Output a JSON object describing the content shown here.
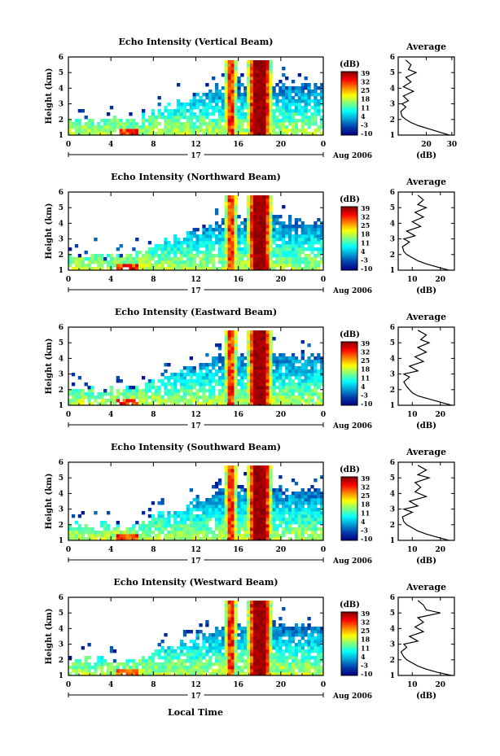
{
  "figure": {
    "xlabel_bottom": "Local Time",
    "date_label": "Aug 2006",
    "day_label": "17",
    "colorbar_unit": "(dB)",
    "avg_title": "Average",
    "avg_xlabel": "(dB)"
  },
  "chart_data": [
    {
      "type": "heatmap",
      "title": "Echo Intensity (Vertical Beam)",
      "ylabel": "Height (km)",
      "x_ticks": [
        "0",
        "4",
        "8",
        "12",
        "16",
        "20",
        "0"
      ],
      "x_range_hours": [
        0,
        24
      ],
      "y_ticks": [
        "1",
        "2",
        "3",
        "4",
        "5",
        "6"
      ],
      "y_range_km": [
        1,
        6
      ],
      "colorbar": {
        "label": "(dB)",
        "ticks": [
          "39",
          "32",
          "25",
          "18",
          "11",
          "4",
          "-3",
          "-10"
        ],
        "range": [
          -10,
          39
        ]
      },
      "heavy_rain_periods_hours": [
        [
          15.0,
          15.6
        ],
        [
          17.0,
          19.0
        ]
      ],
      "average_profile": {
        "title": "Average",
        "xlabel": "(dB)",
        "x_ticks": [
          "20",
          "30"
        ],
        "xlim": [
          9,
          31
        ],
        "y_ticks": [
          "1",
          "2",
          "3",
          "4",
          "5",
          "6"
        ],
        "ylim": [
          1,
          6
        ],
        "height_km": [
          1.0,
          1.2,
          1.4,
          1.6,
          1.8,
          2.0,
          2.2,
          2.5,
          2.8,
          3.0,
          3.2,
          3.5,
          3.8,
          4.1,
          4.4,
          4.7,
          5.0,
          5.2,
          5.5,
          5.8
        ],
        "value_db": [
          29,
          25,
          21,
          17,
          14,
          12,
          10.5,
          10,
          12,
          10.5,
          13,
          11,
          15,
          11,
          14,
          12,
          16,
          13,
          14,
          12
        ]
      }
    },
    {
      "type": "heatmap",
      "title": "Echo Intensity (Northward Beam)",
      "ylabel": "Height (km)",
      "x_ticks": [
        "0",
        "4",
        "8",
        "12",
        "16",
        "20",
        "0"
      ],
      "x_range_hours": [
        0,
        24
      ],
      "y_ticks": [
        "1",
        "2",
        "3",
        "4",
        "5",
        "6"
      ],
      "y_range_km": [
        1,
        6
      ],
      "colorbar": {
        "label": "(dB)",
        "ticks": [
          "39",
          "32",
          "25",
          "18",
          "11",
          "4",
          "-3",
          "-10"
        ],
        "range": [
          -10,
          39
        ]
      },
      "heavy_rain_periods_hours": [
        [
          15.0,
          15.6
        ],
        [
          17.0,
          19.0
        ]
      ],
      "average_profile": {
        "title": "Average",
        "xlabel": "(dB)",
        "x_ticks": [
          "10",
          "20"
        ],
        "xlim": [
          5,
          25
        ],
        "y_ticks": [
          "1",
          "2",
          "3",
          "4",
          "5",
          "6"
        ],
        "ylim": [
          1,
          6
        ],
        "height_km": [
          1.0,
          1.2,
          1.4,
          1.6,
          1.8,
          2.0,
          2.2,
          2.5,
          2.8,
          3.0,
          3.2,
          3.5,
          3.8,
          4.1,
          4.4,
          4.7,
          5.0,
          5.2,
          5.5,
          5.8
        ],
        "value_db": [
          23,
          19,
          15,
          12,
          10,
          8,
          7,
          6.5,
          9,
          7,
          11,
          8,
          13,
          10,
          14,
          11,
          15,
          12,
          14,
          12
        ]
      }
    },
    {
      "type": "heatmap",
      "title": "Echo Intensity (Eastward Beam)",
      "ylabel": "Height (km)",
      "x_ticks": [
        "0",
        "4",
        "8",
        "12",
        "16",
        "20",
        "0"
      ],
      "x_range_hours": [
        0,
        24
      ],
      "y_ticks": [
        "1",
        "2",
        "3",
        "4",
        "5",
        "6"
      ],
      "y_range_km": [
        1,
        6
      ],
      "colorbar": {
        "label": "(dB)",
        "ticks": [
          "39",
          "32",
          "25",
          "18",
          "11",
          "4",
          "-3",
          "-10"
        ],
        "range": [
          -10,
          39
        ]
      },
      "heavy_rain_periods_hours": [
        [
          15.0,
          15.6
        ],
        [
          17.0,
          19.0
        ]
      ],
      "average_profile": {
        "title": "Average",
        "xlabel": "(dB)",
        "x_ticks": [
          "10",
          "20"
        ],
        "xlim": [
          5,
          25
        ],
        "y_ticks": [
          "1",
          "2",
          "3",
          "4",
          "5",
          "6"
        ],
        "ylim": [
          1,
          6
        ],
        "height_km": [
          1.0,
          1.2,
          1.4,
          1.6,
          1.8,
          2.0,
          2.2,
          2.5,
          2.8,
          3.0,
          3.2,
          3.5,
          3.8,
          4.1,
          4.4,
          4.7,
          5.0,
          5.2,
          5.5,
          5.8
        ],
        "value_db": [
          24,
          20,
          16,
          12,
          10,
          9,
          8,
          7,
          9,
          7,
          12,
          9,
          14,
          11,
          15,
          12,
          16,
          13,
          15,
          12
        ]
      }
    },
    {
      "type": "heatmap",
      "title": "Echo Intensity (Southward Beam)",
      "ylabel": "Height (km)",
      "x_ticks": [
        "0",
        "4",
        "8",
        "12",
        "16",
        "20",
        "0"
      ],
      "x_range_hours": [
        0,
        24
      ],
      "y_ticks": [
        "1",
        "2",
        "3",
        "4",
        "5",
        "6"
      ],
      "y_range_km": [
        1,
        6
      ],
      "colorbar": {
        "label": "(dB)",
        "ticks": [
          "39",
          "32",
          "25",
          "18",
          "11",
          "4",
          "-3",
          "-10"
        ],
        "range": [
          -10,
          39
        ]
      },
      "heavy_rain_periods_hours": [
        [
          15.0,
          15.6
        ],
        [
          17.0,
          19.0
        ]
      ],
      "average_profile": {
        "title": "Average",
        "xlabel": "(dB)",
        "x_ticks": [
          "10",
          "20"
        ],
        "xlim": [
          5,
          25
        ],
        "y_ticks": [
          "1",
          "2",
          "3",
          "4",
          "5",
          "6"
        ],
        "ylim": [
          1,
          6
        ],
        "height_km": [
          1.0,
          1.2,
          1.4,
          1.6,
          1.8,
          2.0,
          2.2,
          2.5,
          2.8,
          3.0,
          3.2,
          3.5,
          3.8,
          4.1,
          4.4,
          4.7,
          5.0,
          5.2,
          5.5,
          5.8
        ],
        "value_db": [
          23,
          19,
          15,
          12,
          10,
          8,
          7,
          6.5,
          10,
          7,
          12,
          9,
          15,
          11,
          13,
          11,
          16,
          12,
          15,
          12
        ]
      }
    },
    {
      "type": "heatmap",
      "title": "Echo Intensity (Westward Beam)",
      "ylabel": "Height (km)",
      "x_ticks": [
        "0",
        "4",
        "8",
        "12",
        "16",
        "20",
        "0"
      ],
      "x_range_hours": [
        0,
        24
      ],
      "y_ticks": [
        "1",
        "2",
        "3",
        "4",
        "5",
        "6"
      ],
      "y_range_km": [
        1,
        6
      ],
      "colorbar": {
        "label": "(dB)",
        "ticks": [
          "39",
          "32",
          "25",
          "18",
          "11",
          "4",
          "-3",
          "-10"
        ],
        "range": [
          -10,
          39
        ]
      },
      "heavy_rain_periods_hours": [
        [
          15.0,
          15.6
        ],
        [
          17.0,
          19.0
        ]
      ],
      "average_profile": {
        "title": "Average",
        "xlabel": "(dB)",
        "x_ticks": [
          "10",
          "20"
        ],
        "xlim": [
          5,
          25
        ],
        "y_ticks": [
          "1",
          "2",
          "3",
          "4",
          "5",
          "6"
        ],
        "ylim": [
          1,
          6
        ],
        "height_km": [
          1.0,
          1.2,
          1.4,
          1.6,
          1.8,
          2.0,
          2.2,
          2.5,
          2.8,
          3.0,
          3.2,
          3.5,
          3.8,
          4.1,
          4.4,
          4.7,
          5.0,
          5.2,
          5.5,
          5.8
        ],
        "value_db": [
          24,
          19,
          15,
          12,
          10,
          8,
          7,
          6,
          8,
          7,
          12,
          9,
          14,
          11,
          14,
          12,
          20,
          15,
          14,
          12
        ]
      }
    }
  ]
}
